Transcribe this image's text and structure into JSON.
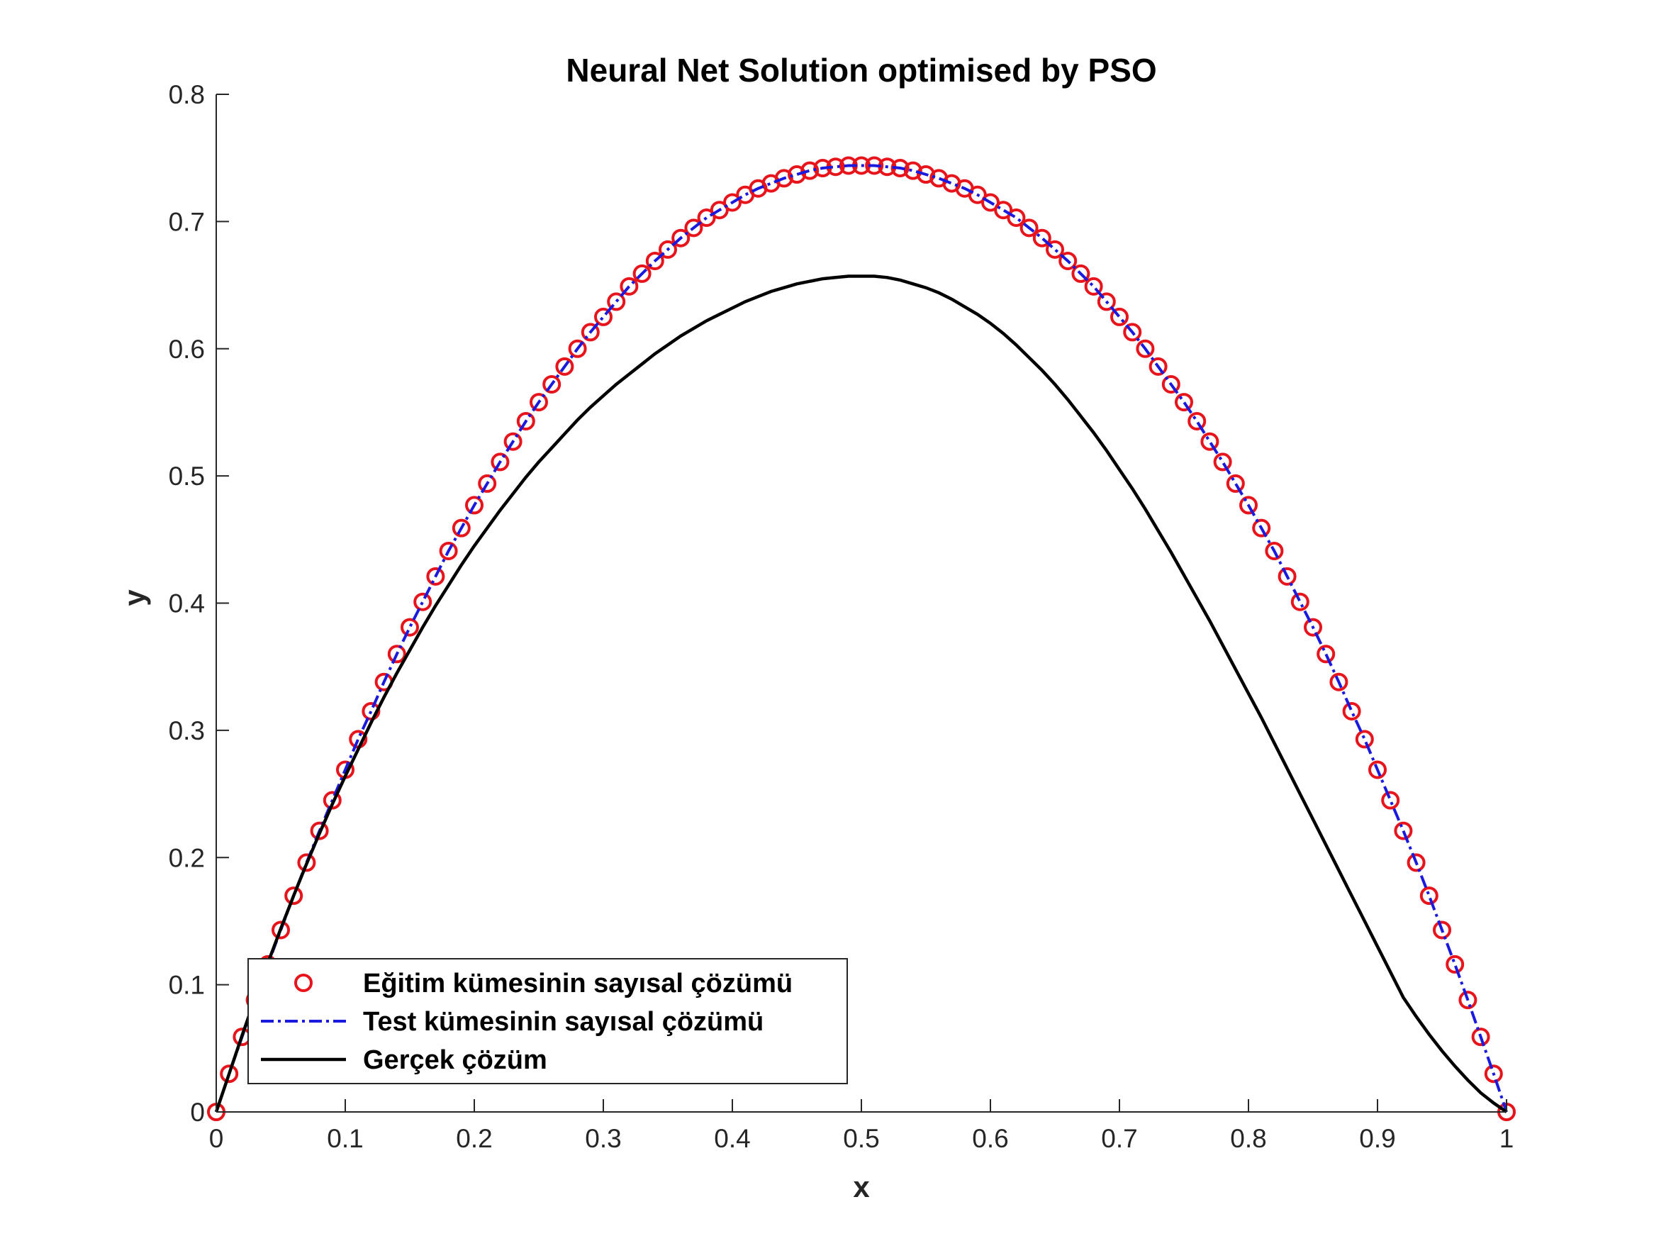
{
  "chart_data": {
    "type": "line",
    "title": "Neural Net Solution optimised by PSO",
    "xlabel": "x",
    "ylabel": "y",
    "xlim": [
      0,
      1
    ],
    "ylim": [
      0,
      0.8
    ],
    "xticks": [
      0,
      0.1,
      0.2,
      0.3,
      0.4,
      0.5,
      0.6,
      0.7,
      0.8,
      0.9,
      1
    ],
    "xtick_labels": [
      "0",
      "0.1",
      "0.2",
      "0.3",
      "0.4",
      "0.5",
      "0.6",
      "0.7",
      "0.8",
      "0.9",
      "1"
    ],
    "yticks": [
      0,
      0.1,
      0.2,
      0.3,
      0.4,
      0.5,
      0.6,
      0.7,
      0.8
    ],
    "ytick_labels": [
      "0",
      "0.1",
      "0.2",
      "0.3",
      "0.4",
      "0.5",
      "0.6",
      "0.7",
      "0.8"
    ],
    "grid": false,
    "legend_position": "bottom-left",
    "x": [
      0,
      0.01,
      0.02,
      0.03,
      0.04,
      0.05,
      0.06,
      0.07,
      0.08,
      0.09,
      0.1,
      0.11,
      0.12,
      0.13,
      0.14,
      0.15,
      0.16,
      0.17,
      0.18,
      0.19,
      0.2,
      0.21,
      0.22,
      0.23,
      0.24,
      0.25,
      0.26,
      0.27,
      0.28,
      0.29,
      0.3,
      0.31,
      0.32,
      0.33,
      0.34,
      0.35,
      0.36,
      0.37,
      0.38,
      0.39,
      0.4,
      0.41,
      0.42,
      0.43,
      0.44,
      0.45,
      0.46,
      0.47,
      0.48,
      0.49,
      0.5,
      0.51,
      0.52,
      0.53,
      0.54,
      0.55,
      0.56,
      0.57,
      0.58,
      0.59,
      0.6,
      0.61,
      0.62,
      0.63,
      0.64,
      0.65,
      0.66,
      0.67,
      0.68,
      0.69,
      0.7,
      0.71,
      0.72,
      0.73,
      0.74,
      0.75,
      0.76,
      0.77,
      0.78,
      0.79,
      0.8,
      0.81,
      0.82,
      0.83,
      0.84,
      0.85,
      0.86,
      0.87,
      0.88,
      0.89,
      0.9,
      0.91,
      0.92,
      0.93,
      0.94,
      0.95,
      0.96,
      0.97,
      0.98,
      0.99,
      1
    ],
    "series": [
      {
        "name": "Eğitim kümesinin sayısal çözümü",
        "style": "markers",
        "color": "#e8141b",
        "values": [
          0,
          0.03,
          0.059,
          0.088,
          0.116,
          0.143,
          0.17,
          0.196,
          0.221,
          0.245,
          0.269,
          0.293,
          0.315,
          0.338,
          0.36,
          0.381,
          0.401,
          0.421,
          0.441,
          0.459,
          0.477,
          0.494,
          0.511,
          0.527,
          0.543,
          0.558,
          0.572,
          0.586,
          0.6,
          0.613,
          0.625,
          0.637,
          0.649,
          0.659,
          0.669,
          0.678,
          0.687,
          0.695,
          0.703,
          0.709,
          0.715,
          0.721,
          0.726,
          0.73,
          0.734,
          0.737,
          0.74,
          0.742,
          0.743,
          0.744,
          0.744,
          0.744,
          0.743,
          0.742,
          0.74,
          0.737,
          0.734,
          0.73,
          0.726,
          0.721,
          0.715,
          0.709,
          0.703,
          0.695,
          0.687,
          0.678,
          0.669,
          0.659,
          0.649,
          0.637,
          0.625,
          0.613,
          0.6,
          0.586,
          0.572,
          0.558,
          0.543,
          0.527,
          0.511,
          0.494,
          0.477,
          0.459,
          0.441,
          0.421,
          0.401,
          0.381,
          0.36,
          0.338,
          0.315,
          0.293,
          0.269,
          0.245,
          0.221,
          0.196,
          0.17,
          0.143,
          0.116,
          0.088,
          0.059,
          0.03,
          0
        ]
      },
      {
        "name": "Test kümesinin sayısal çözümü",
        "style": "dash-dot",
        "color": "#1a1adf",
        "values": [
          0,
          0.03,
          0.059,
          0.088,
          0.116,
          0.143,
          0.17,
          0.196,
          0.221,
          0.245,
          0.269,
          0.293,
          0.315,
          0.338,
          0.36,
          0.381,
          0.401,
          0.421,
          0.441,
          0.459,
          0.477,
          0.494,
          0.511,
          0.527,
          0.543,
          0.558,
          0.572,
          0.586,
          0.6,
          0.613,
          0.625,
          0.637,
          0.649,
          0.659,
          0.669,
          0.678,
          0.687,
          0.695,
          0.703,
          0.709,
          0.715,
          0.721,
          0.726,
          0.73,
          0.734,
          0.737,
          0.74,
          0.742,
          0.743,
          0.744,
          0.744,
          0.744,
          0.743,
          0.742,
          0.74,
          0.737,
          0.734,
          0.73,
          0.726,
          0.721,
          0.715,
          0.709,
          0.703,
          0.695,
          0.687,
          0.678,
          0.669,
          0.659,
          0.649,
          0.637,
          0.625,
          0.613,
          0.6,
          0.586,
          0.572,
          0.558,
          0.543,
          0.527,
          0.511,
          0.494,
          0.477,
          0.459,
          0.441,
          0.421,
          0.401,
          0.381,
          0.36,
          0.338,
          0.315,
          0.293,
          0.269,
          0.245,
          0.221,
          0.196,
          0.17,
          0.143,
          0.116,
          0.088,
          0.059,
          0.03,
          0
        ]
      },
      {
        "name": "Gerçek çözüm",
        "style": "solid",
        "color": "#000000",
        "values": [
          0,
          0.03,
          0.06,
          0.089,
          0.117,
          0.144,
          0.17,
          0.195,
          0.219,
          0.242,
          0.264,
          0.285,
          0.306,
          0.326,
          0.345,
          0.363,
          0.381,
          0.398,
          0.414,
          0.43,
          0.445,
          0.459,
          0.473,
          0.486,
          0.499,
          0.511,
          0.522,
          0.533,
          0.544,
          0.554,
          0.563,
          0.572,
          0.58,
          0.588,
          0.596,
          0.603,
          0.61,
          0.616,
          0.622,
          0.627,
          0.632,
          0.637,
          0.641,
          0.645,
          0.648,
          0.651,
          0.653,
          0.655,
          0.656,
          0.657,
          0.657,
          0.657,
          0.656,
          0.654,
          0.651,
          0.648,
          0.644,
          0.639,
          0.633,
          0.627,
          0.62,
          0.612,
          0.603,
          0.593,
          0.583,
          0.572,
          0.56,
          0.547,
          0.534,
          0.52,
          0.505,
          0.49,
          0.474,
          0.457,
          0.44,
          0.422,
          0.404,
          0.386,
          0.367,
          0.348,
          0.329,
          0.31,
          0.29,
          0.27,
          0.25,
          0.23,
          0.21,
          0.19,
          0.17,
          0.15,
          0.13,
          0.11,
          0.09,
          0.075,
          0.061,
          0.048,
          0.036,
          0.025,
          0.015,
          0.007,
          0
        ]
      }
    ]
  }
}
